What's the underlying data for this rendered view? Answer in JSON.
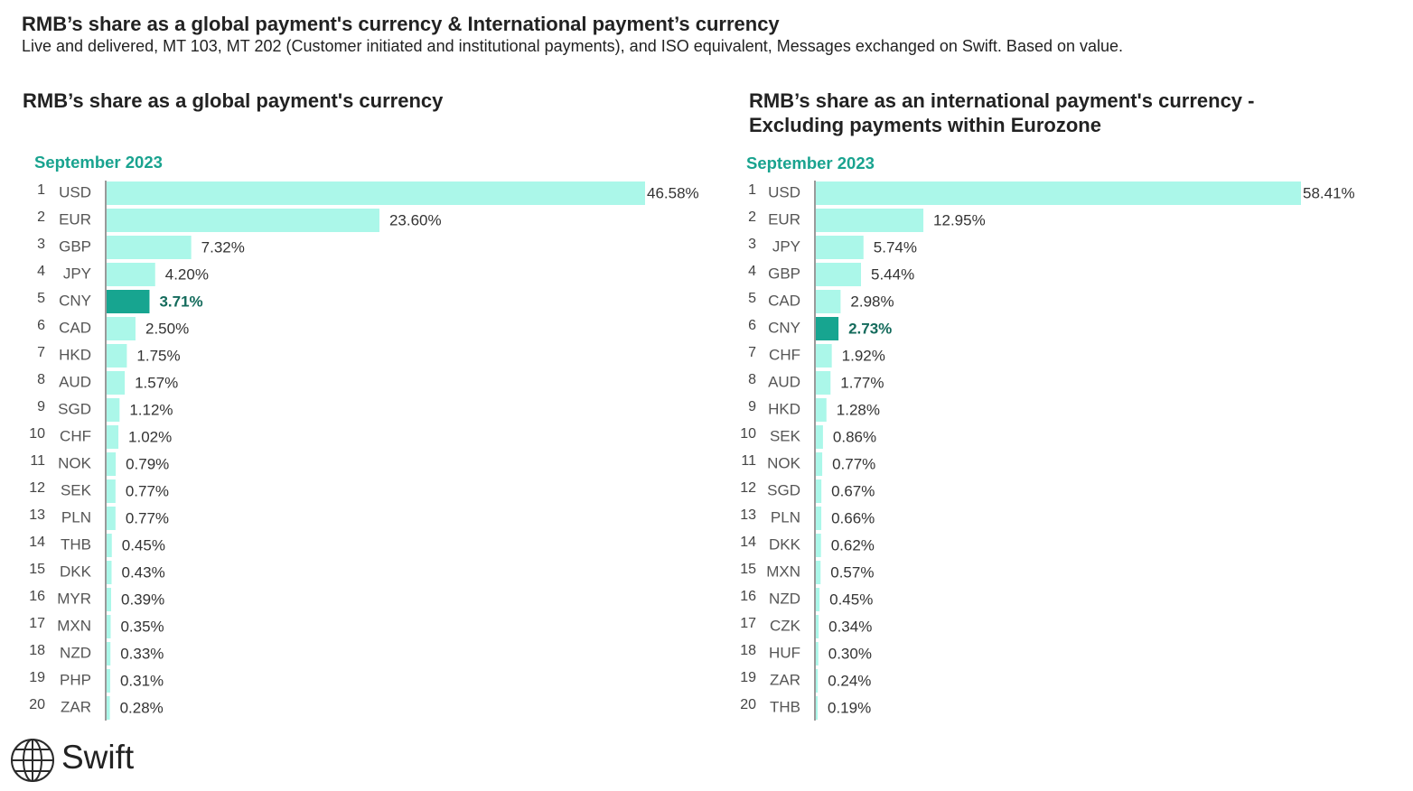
{
  "header": {
    "title": "RMB’s share as a global payment's currency & International payment’s currency",
    "subtitle": "Live and delivered, MT 103, MT 202 (Customer initiated and institutional payments), and ISO equivalent, Messages exchanged on Swift. Based on value."
  },
  "brand": {
    "name": "Swift",
    "logo_icon": "globe-icon"
  },
  "colors": {
    "bar": "#abf7e9",
    "highlight_bar": "#17a590",
    "highlight_text": "#146b5c",
    "period": "#19a38f",
    "axis": "#9a9a9a"
  },
  "chart_data": [
    {
      "type": "bar",
      "orientation": "horizontal",
      "title": "RMB’s share as a global payment's currency",
      "period": "September 2023",
      "highlight": "CNY",
      "ranks": [
        "1",
        "2",
        "3",
        "4",
        "5",
        "6",
        "7",
        "8",
        "9",
        "10",
        "11",
        "12",
        "13",
        "14",
        "15",
        "16",
        "17",
        "18",
        "19",
        "20"
      ],
      "categories": [
        "USD",
        "EUR",
        "GBP",
        "JPY",
        "CNY",
        "CAD",
        "HKD",
        "AUD",
        "SGD",
        "CHF",
        "NOK",
        "SEK",
        "PLN",
        "THB",
        "DKK",
        "MYR",
        "MXN",
        "NZD",
        "PHP",
        "ZAR"
      ],
      "values": [
        46.58,
        23.6,
        7.32,
        4.2,
        3.71,
        2.5,
        1.75,
        1.57,
        1.12,
        1.02,
        0.79,
        0.77,
        0.77,
        0.45,
        0.43,
        0.39,
        0.35,
        0.33,
        0.31,
        0.28
      ],
      "labels": [
        "46.58%",
        "23.60%",
        "7.32%",
        "4.20%",
        "3.71%",
        "2.50%",
        "1.75%",
        "1.57%",
        "1.12%",
        "1.02%",
        "0.79%",
        "0.77%",
        "0.77%",
        "0.45%",
        "0.43%",
        "0.39%",
        "0.35%",
        "0.33%",
        "0.31%",
        "0.28%"
      ],
      "unit": "%"
    },
    {
      "type": "bar",
      "orientation": "horizontal",
      "title": "RMB’s share as an international payment's currency - Excluding payments within Eurozone",
      "period": "September 2023",
      "highlight": "CNY",
      "ranks": [
        "1",
        "2",
        "3",
        "4",
        "5",
        "6",
        "7",
        "8",
        "9",
        "10",
        "11",
        "12",
        "13",
        "14",
        "15",
        "16",
        "17",
        "18",
        "19",
        "20"
      ],
      "categories": [
        "USD",
        "EUR",
        "JPY",
        "GBP",
        "CAD",
        "CNY",
        "CHF",
        "AUD",
        "HKD",
        "SEK",
        "NOK",
        "SGD",
        "PLN",
        "DKK",
        "MXN",
        "NZD",
        "CZK",
        "HUF",
        "ZAR",
        "THB"
      ],
      "values": [
        58.41,
        12.95,
        5.74,
        5.44,
        2.98,
        2.73,
        1.92,
        1.77,
        1.28,
        0.86,
        0.77,
        0.67,
        0.66,
        0.62,
        0.57,
        0.45,
        0.34,
        0.3,
        0.24,
        0.19
      ],
      "labels": [
        "58.41%",
        "12.95%",
        "5.74%",
        "5.44%",
        "2.98%",
        "2.73%",
        "1.92%",
        "1.77%",
        "1.28%",
        "0.86%",
        "0.77%",
        "0.67%",
        "0.66%",
        "0.62%",
        "0.57%",
        "0.45%",
        "0.34%",
        "0.30%",
        "0.24%",
        "0.19%"
      ],
      "unit": "%"
    }
  ]
}
